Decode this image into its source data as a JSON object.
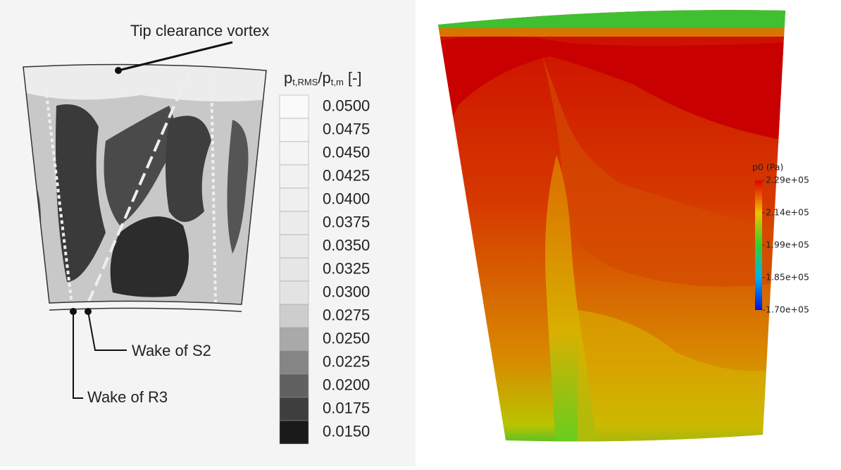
{
  "left_panel": {
    "annotations": {
      "tip": "Tip clearance vortex",
      "wake_s2": "Wake of S2",
      "wake_r3": "Wake of R3"
    },
    "colorbar": {
      "title": {
        "p1": "p",
        "sub1": "t,RMS",
        "p2": "/p",
        "sub2": "t,m",
        "unit": " [-]"
      },
      "labels": [
        "0.0500",
        "0.0475",
        "0.0450",
        "0.0425",
        "0.0400",
        "0.0375",
        "0.0350",
        "0.0325",
        "0.0300",
        "0.0275",
        "0.0250",
        "0.0225",
        "0.0200",
        "0.0175",
        "0.0150"
      ]
    }
  },
  "right_panel": {
    "colorbar": {
      "title": "p0 (Pa)",
      "labels": [
        "2.29e+05",
        "2.14e+05",
        "1.99e+05",
        "1.85e+05",
        "1.70e+05"
      ]
    }
  }
}
